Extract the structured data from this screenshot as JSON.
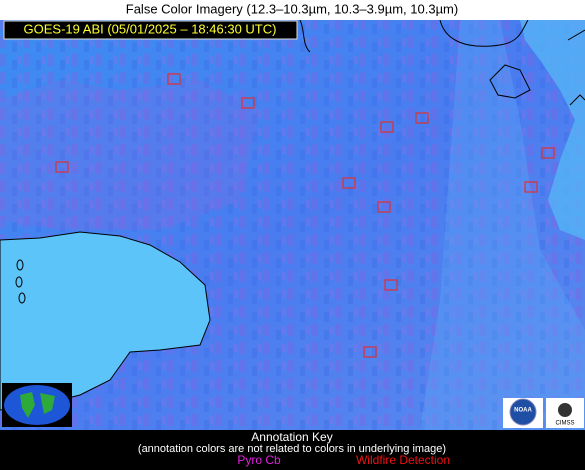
{
  "header": {
    "title": "False Color Imagery (12.3–10.3µm, 10.3–3.9µm, 10.3µm)",
    "timestamp": "GOES-19 ABI (05/01/2025 – 18:46:30 UTC)"
  },
  "logos": {
    "noaa": "NOAA",
    "cimss": "CIMSS"
  },
  "key": {
    "title": "Annotation Key",
    "note": "(annotation colors are not related to colors in underlying image)",
    "items": [
      "Pyro Cb",
      "Wildfire Detection"
    ]
  }
}
